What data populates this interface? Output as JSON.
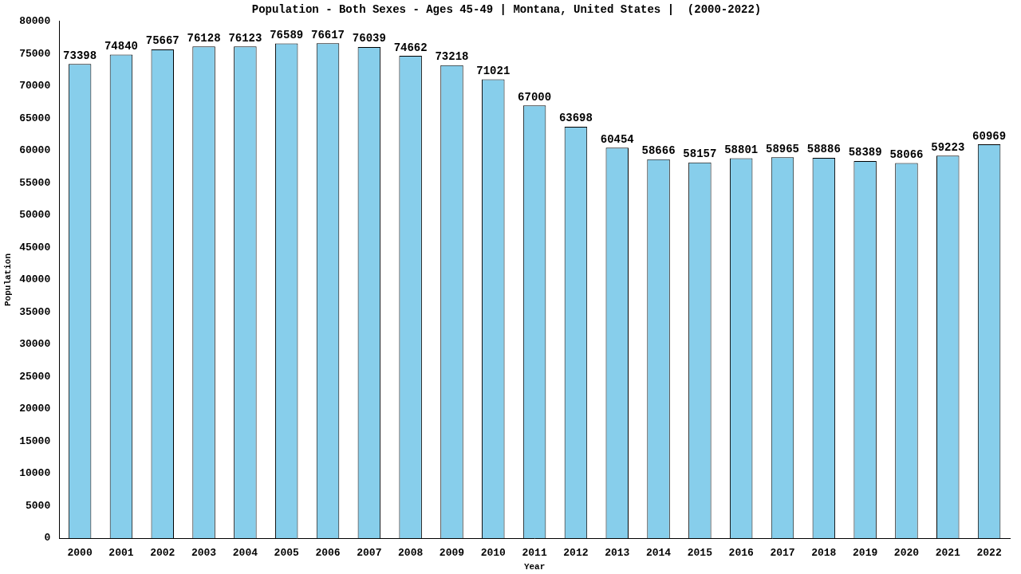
{
  "chart_data": {
    "type": "bar",
    "title": "Population - Both Sexes - Ages 45-49 | Montana, United States |  (2000-2022)",
    "x_label": "Year",
    "y_label": "Population",
    "categories": [
      "2000",
      "2001",
      "2002",
      "2003",
      "2004",
      "2005",
      "2006",
      "2007",
      "2008",
      "2009",
      "2010",
      "2011",
      "2012",
      "2013",
      "2014",
      "2015",
      "2016",
      "2017",
      "2018",
      "2019",
      "2020",
      "2021",
      "2022"
    ],
    "values": [
      73398,
      74840,
      75667,
      76128,
      76123,
      76589,
      76617,
      76039,
      74662,
      73218,
      71021,
      67000,
      63698,
      60454,
      58666,
      58157,
      58801,
      58965,
      58886,
      58389,
      58066,
      59223,
      60969
    ],
    "color": "#87ceeb",
    "ylim": [
      0,
      80000
    ],
    "yticks": [
      0,
      5000,
      10000,
      15000,
      20000,
      25000,
      30000,
      35000,
      40000,
      45000,
      50000,
      55000,
      60000,
      65000,
      70000,
      75000,
      80000
    ],
    "grid": false,
    "data_labels": true
  }
}
